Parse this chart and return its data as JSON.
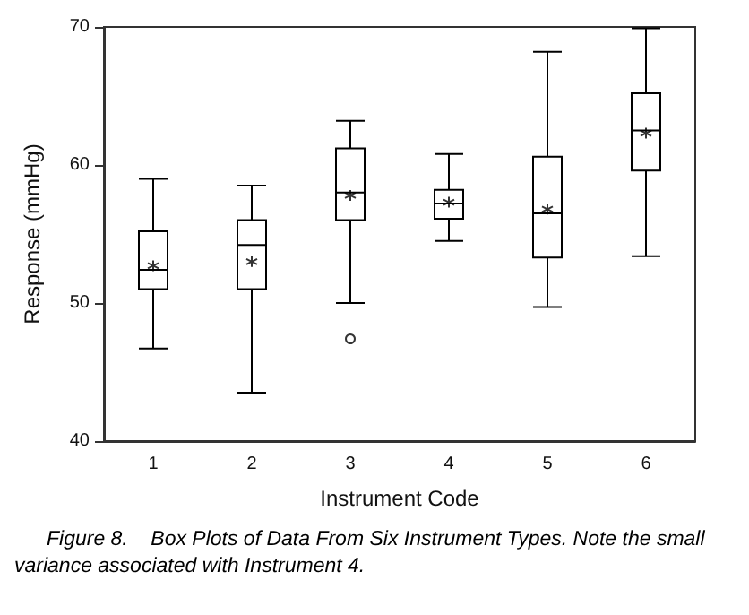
{
  "chart_data": {
    "type": "box",
    "xlabel": "Instrument Code",
    "ylabel": "Response (mmHg)",
    "categories": [
      "1",
      "2",
      "3",
      "4",
      "5",
      "6"
    ],
    "boxes": [
      {
        "low": 46.7,
        "q1": 51,
        "median": 52.4,
        "q3": 55.2,
        "high": 59,
        "mean": 52.7
      },
      {
        "low": 43.5,
        "q1": 51,
        "median": 54.2,
        "q3": 56,
        "high": 58.5,
        "mean": 53
      },
      {
        "low": 50,
        "q1": 56,
        "median": 58,
        "q3": 61.2,
        "high": 63.2,
        "mean": 57.8,
        "outliers": [
          47.4
        ]
      },
      {
        "low": 54.5,
        "q1": 56.1,
        "median": 57.2,
        "q3": 58.2,
        "high": 60.8,
        "mean": 57.3
      },
      {
        "low": 49.7,
        "q1": 53.3,
        "median": 56.5,
        "q3": 60.6,
        "high": 68.2,
        "mean": 56.8
      },
      {
        "low": 53.4,
        "q1": 59.6,
        "median": 62.5,
        "q3": 65.2,
        "high": 69.9,
        "mean": 62.3
      }
    ],
    "color": "#000000",
    "ylim": [
      40,
      70
    ],
    "yticks": [
      40,
      50,
      60,
      70
    ],
    "grid": false,
    "annotations": [
      "Figure 8.    Box Plots of Data From Six Instrument Types. Note the small variance associated with Instrument 4."
    ]
  }
}
